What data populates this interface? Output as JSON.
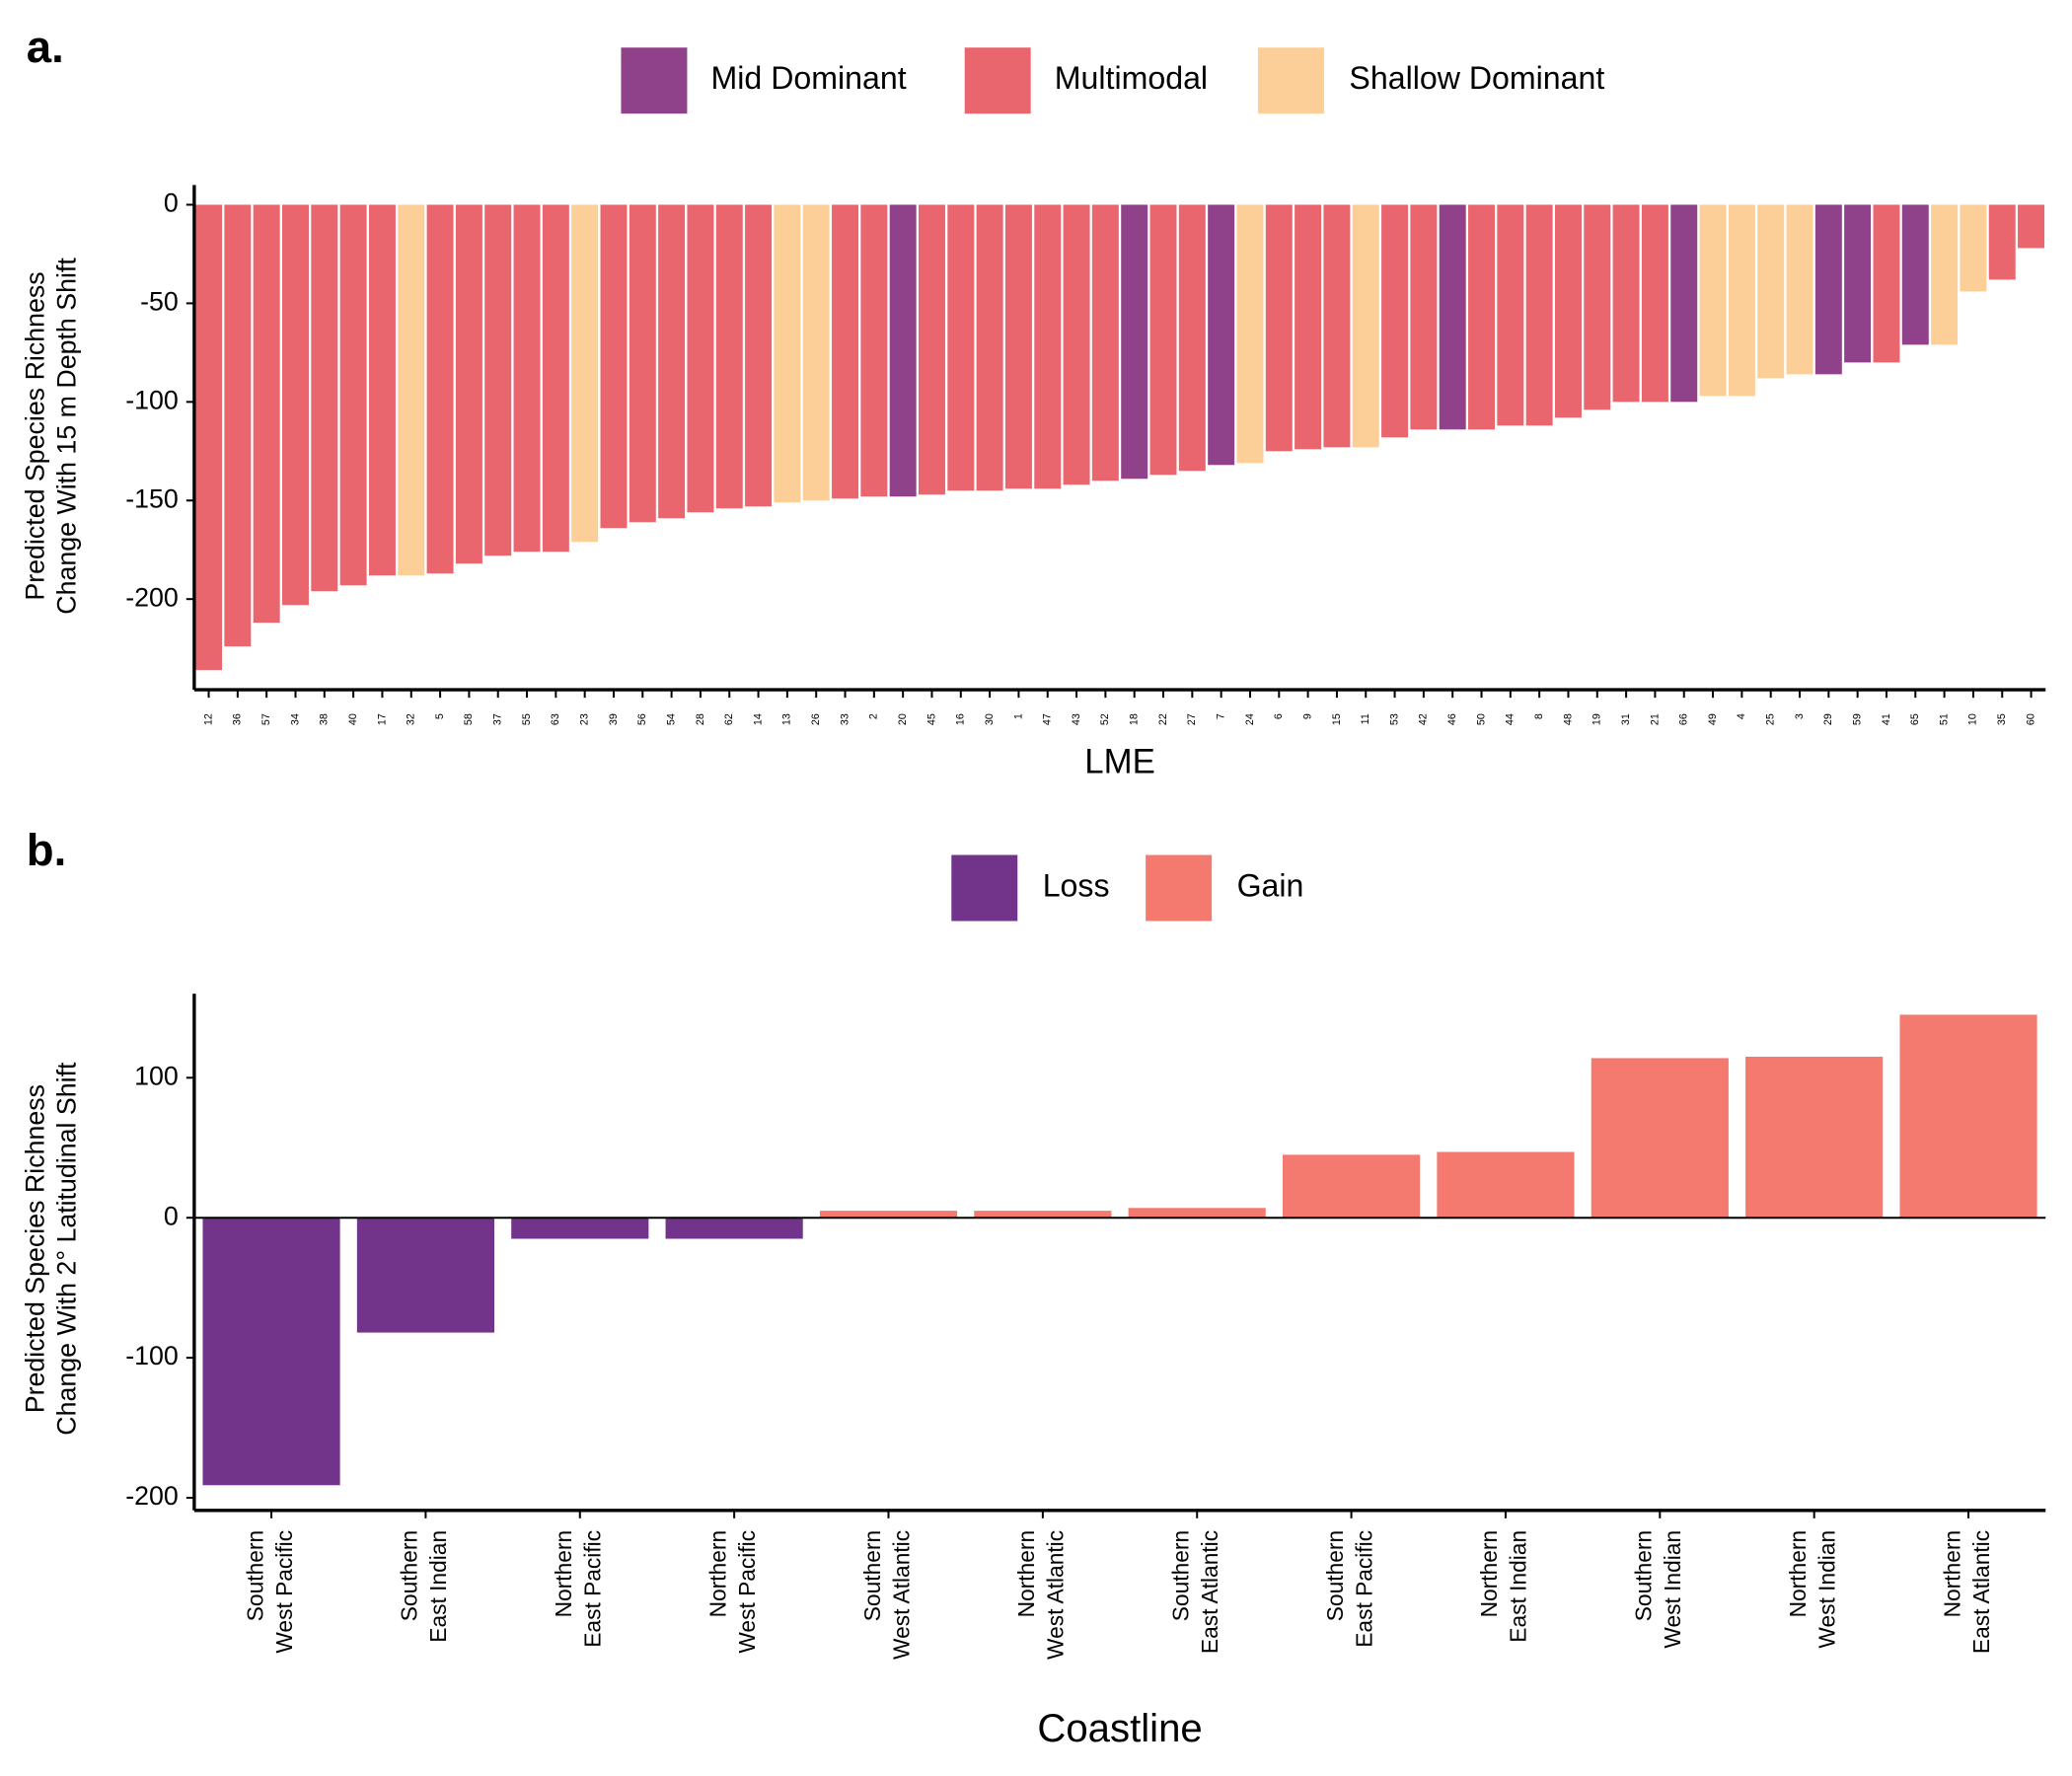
{
  "chart_data": [
    {
      "type": "bar",
      "panel_label": "a.",
      "x_label": "LME",
      "y_label": [
        "Predicted Species Richness",
        "Change With 15 m Depth Shift"
      ],
      "legend": [
        {
          "name": "Mid Dominant",
          "color": "#8f4289"
        },
        {
          "name": "Multimodal",
          "color": "#e9666f"
        },
        {
          "name": "Shallow Dominant",
          "color": "#fdcf98"
        }
      ],
      "categories": [
        "12",
        "36",
        "57",
        "34",
        "38",
        "40",
        "17",
        "32",
        "5",
        "58",
        "37",
        "55",
        "63",
        "23",
        "39",
        "56",
        "54",
        "28",
        "62",
        "14",
        "13",
        "26",
        "33",
        "2",
        "20",
        "45",
        "16",
        "30",
        "1",
        "47",
        "43",
        "52",
        "18",
        "22",
        "27",
        "7",
        "24",
        "6",
        "9",
        "15",
        "11",
        "53",
        "42",
        "46",
        "50",
        "44",
        "8",
        "48",
        "19",
        "31",
        "21",
        "66",
        "49",
        "4",
        "25",
        "3",
        "29",
        "59",
        "41",
        "65",
        "51",
        "10",
        "35",
        "60"
      ],
      "values": [
        -236,
        -224,
        -212,
        -203,
        -196,
        -193,
        -188,
        -188,
        -187,
        -182,
        -178,
        -176,
        -176,
        -171,
        -164,
        -161,
        -159,
        -156,
        -154,
        -153,
        -151,
        -150,
        -149,
        -148,
        -148,
        -147,
        -145,
        -145,
        -144,
        -144,
        -142,
        -140,
        -139,
        -137,
        -135,
        -132,
        -131,
        -125,
        -124,
        -123,
        -123,
        -118,
        -114,
        -114,
        -114,
        -112,
        -112,
        -108,
        -104,
        -100,
        -100,
        -100,
        -97,
        -97,
        -88,
        -86,
        -86,
        -80,
        -80,
        -71,
        -71,
        -44,
        -38,
        -22
      ],
      "groups": [
        "Multimodal",
        "Multimodal",
        "Multimodal",
        "Multimodal",
        "Multimodal",
        "Multimodal",
        "Multimodal",
        "Shallow Dominant",
        "Multimodal",
        "Multimodal",
        "Multimodal",
        "Multimodal",
        "Multimodal",
        "Shallow Dominant",
        "Multimodal",
        "Multimodal",
        "Multimodal",
        "Multimodal",
        "Multimodal",
        "Multimodal",
        "Shallow Dominant",
        "Shallow Dominant",
        "Multimodal",
        "Multimodal",
        "Mid Dominant",
        "Multimodal",
        "Multimodal",
        "Multimodal",
        "Multimodal",
        "Multimodal",
        "Multimodal",
        "Multimodal",
        "Mid Dominant",
        "Multimodal",
        "Multimodal",
        "Mid Dominant",
        "Shallow Dominant",
        "Multimodal",
        "Multimodal",
        "Multimodal",
        "Shallow Dominant",
        "Multimodal",
        "Multimodal",
        "Mid Dominant",
        "Multimodal",
        "Multimodal",
        "Multimodal",
        "Multimodal",
        "Multimodal",
        "Multimodal",
        "Multimodal",
        "Mid Dominant",
        "Shallow Dominant",
        "Shallow Dominant",
        "Shallow Dominant",
        "Shallow Dominant",
        "Mid Dominant",
        "Mid Dominant",
        "Multimodal",
        "Mid Dominant",
        "Shallow Dominant",
        "Shallow Dominant",
        "Multimodal",
        "Multimodal"
      ],
      "ylim": [
        -246,
        10
      ],
      "yticks": [
        0,
        -50,
        -100,
        -150,
        -200
      ]
    },
    {
      "type": "bar",
      "panel_label": "b.",
      "x_label": "Coastline",
      "y_label": [
        "Predicted Species Richness",
        "Change With 2° Latitudinal Shift"
      ],
      "legend": [
        {
          "name": "Loss",
          "color": "#72348a"
        },
        {
          "name": "Gain",
          "color": "#f47a6f"
        }
      ],
      "categories": [
        [
          "Southern",
          "West Pacific"
        ],
        [
          "Southern",
          "East Indian"
        ],
        [
          "Northern",
          "East Pacific"
        ],
        [
          "Northern",
          "West Pacific"
        ],
        [
          "Southern",
          "West Atlantic"
        ],
        [
          "Northern",
          "West Atlantic"
        ],
        [
          "Southern",
          "East Atlantic"
        ],
        [
          "Southern",
          "East Pacific"
        ],
        [
          "Northern",
          "East Indian"
        ],
        [
          "Southern",
          "West Indian"
        ],
        [
          "Northern",
          "West Indian"
        ],
        [
          "Northern",
          "East Atlantic"
        ]
      ],
      "values": [
        -191,
        -82,
        -15,
        -15,
        5,
        5,
        7,
        45,
        47,
        114,
        115,
        145
      ],
      "groups": [
        "Loss",
        "Loss",
        "Loss",
        "Loss",
        "Gain",
        "Gain",
        "Gain",
        "Gain",
        "Gain",
        "Gain",
        "Gain",
        "Gain"
      ],
      "ylim": [
        -209,
        160
      ],
      "yticks": [
        100,
        0,
        -100,
        -200
      ],
      "zero_line": true
    }
  ]
}
